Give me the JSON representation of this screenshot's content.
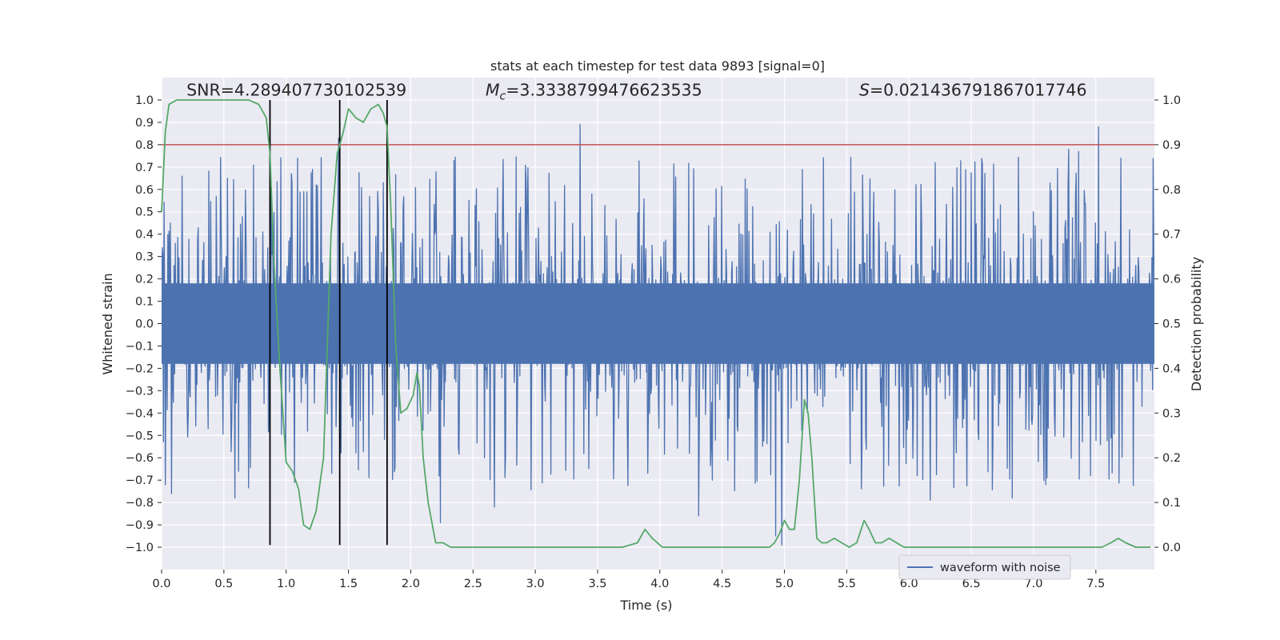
{
  "chart_data": {
    "type": "line",
    "title": "stats at each timestep for test data 9893 [signal=0]",
    "xlabel": "Time (s)",
    "ylabel": "Whitened strain",
    "y2label": "Detection probability",
    "xlim": [
      0,
      7.97
    ],
    "ylim": [
      -1.1,
      1.1
    ],
    "y2lim": [
      -0.05,
      1.05
    ],
    "grid": true,
    "x_ticks": [
      "0.0",
      "0.5",
      "1.0",
      "1.5",
      "2.0",
      "2.5",
      "3.0",
      "3.5",
      "4.0",
      "4.5",
      "5.0",
      "5.5",
      "6.0",
      "6.5",
      "7.0",
      "7.5"
    ],
    "y_ticks": [
      "1.0",
      "0.9",
      "0.8",
      "0.7",
      "0.6",
      "0.5",
      "0.4",
      "0.3",
      "0.2",
      "0.1",
      "0.0",
      "−0.1",
      "−0.2",
      "−0.3",
      "−0.4",
      "−0.5",
      "−0.6",
      "−0.7",
      "−0.8",
      "−0.9",
      "−1.0"
    ],
    "y2_ticks": [
      "1.0",
      "0.9",
      "0.8",
      "0.7",
      "0.6",
      "0.5",
      "0.4",
      "0.3",
      "0.2",
      "0.1",
      "0.0"
    ],
    "annotations": {
      "snr": {
        "label": "SNR=4.289407730102539",
        "x": 0.2,
        "y": 1.02
      },
      "mc": {
        "prefix": "M",
        "sub": "c",
        "value": "=3.3338799476623535",
        "x": 2.6,
        "y": 1.02
      },
      "s": {
        "prefix": "S",
        "value": "=0.0214367918670177​46",
        "x": 5.6,
        "y": 1.02
      }
    },
    "threshold": {
      "value": 0.8,
      "color": "#c44e52"
    },
    "vlines": {
      "x": [
        0.87,
        1.43,
        1.81
      ],
      "ymin": -0.99,
      "ymax": 1.0,
      "color": "#000000"
    },
    "series": [
      {
        "name": "waveform with noise",
        "color": "#4c72b0",
        "type": "noise",
        "duration": 7.97,
        "samples": 1600,
        "core_amplitude": 0.33,
        "extreme_amplitude": 0.75,
        "peaks": [
          {
            "x": 0.03,
            "y": 0.98
          },
          {
            "x": 0.03,
            "y": -0.72
          },
          {
            "x": 0.08,
            "y": -0.76
          },
          {
            "x": 0.87,
            "y": 0.68
          },
          {
            "x": 1.42,
            "y": 0.83
          },
          {
            "x": 1.78,
            "y": 0.63
          },
          {
            "x": 3.36,
            "y": 0.89
          },
          {
            "x": 7.52,
            "y": 0.88
          },
          {
            "x": 0.59,
            "y": -0.78
          },
          {
            "x": 2.24,
            "y": -0.89
          },
          {
            "x": 2.67,
            "y": -0.82
          },
          {
            "x": 4.31,
            "y": -0.86
          },
          {
            "x": 4.93,
            "y": -0.95
          },
          {
            "x": 4.98,
            "y": -0.99
          },
          {
            "x": 6.17,
            "y": -0.79
          },
          {
            "x": 6.83,
            "y": -0.78
          },
          {
            "x": 7.11,
            "y": -0.69
          },
          {
            "x": 0.53,
            "y": 0.65
          },
          {
            "x": 1.04,
            "y": 0.67
          },
          {
            "x": 1.09,
            "y": 0.74
          },
          {
            "x": 1.21,
            "y": 0.69
          },
          {
            "x": 7.28,
            "y": 0.78
          },
          {
            "x": 7.36,
            "y": 0.77
          },
          {
            "x": 7.7,
            "y": 0.74
          }
        ]
      },
      {
        "name": "detection probability",
        "color": "#55a868",
        "axis": "right",
        "x": [
          0.0,
          0.03,
          0.06,
          0.12,
          0.2,
          0.4,
          0.6,
          0.7,
          0.78,
          0.84,
          0.87,
          0.9,
          0.95,
          1.0,
          1.05,
          1.1,
          1.14,
          1.19,
          1.24,
          1.3,
          1.36,
          1.41,
          1.43,
          1.46,
          1.5,
          1.56,
          1.62,
          1.68,
          1.74,
          1.78,
          1.81,
          1.84,
          1.88,
          1.92,
          1.97,
          2.02,
          2.05,
          2.07,
          2.1,
          2.14,
          2.2,
          2.26,
          2.32,
          2.4,
          2.5,
          2.7,
          2.9,
          3.1,
          3.3,
          3.5,
          3.7,
          3.82,
          3.88,
          3.94,
          4.02,
          4.06,
          4.2,
          4.4,
          4.6,
          4.8,
          4.88,
          4.92,
          4.96,
          5.0,
          5.04,
          5.08,
          5.12,
          5.16,
          5.19,
          5.22,
          5.26,
          5.3,
          5.34,
          5.4,
          5.46,
          5.52,
          5.58,
          5.64,
          5.68,
          5.73,
          5.78,
          5.84,
          5.9,
          5.96,
          6.02,
          6.15,
          6.3,
          6.5,
          6.7,
          6.9,
          7.1,
          7.3,
          7.45,
          7.55,
          7.62,
          7.68,
          7.74,
          7.82,
          7.94
        ],
        "y": [
          0.75,
          0.93,
          0.99,
          1.0,
          1.0,
          1.0,
          1.0,
          1.0,
          0.99,
          0.96,
          0.88,
          0.65,
          0.4,
          0.19,
          0.17,
          0.13,
          0.05,
          0.04,
          0.08,
          0.2,
          0.7,
          0.88,
          0.9,
          0.93,
          0.98,
          0.96,
          0.95,
          0.98,
          0.99,
          0.97,
          0.94,
          0.76,
          0.45,
          0.3,
          0.31,
          0.34,
          0.39,
          0.36,
          0.2,
          0.1,
          0.01,
          0.01,
          0.0,
          0.0,
          0.0,
          0.0,
          0.0,
          0.0,
          0.0,
          0.0,
          0.0,
          0.01,
          0.04,
          0.02,
          0.0,
          0.0,
          0.0,
          0.0,
          0.0,
          0.0,
          0.0,
          0.01,
          0.03,
          0.06,
          0.04,
          0.04,
          0.15,
          0.33,
          0.3,
          0.2,
          0.02,
          0.01,
          0.01,
          0.02,
          0.01,
          0.0,
          0.01,
          0.06,
          0.04,
          0.01,
          0.01,
          0.02,
          0.01,
          0.0,
          0.0,
          0.0,
          0.0,
          0.0,
          0.0,
          0.0,
          0.0,
          0.0,
          0.0,
          0.0,
          0.01,
          0.02,
          0.01,
          0.0,
          0.0
        ]
      }
    ],
    "legend": {
      "placement": "lower-right",
      "entries": [
        "waveform with noise"
      ]
    }
  }
}
